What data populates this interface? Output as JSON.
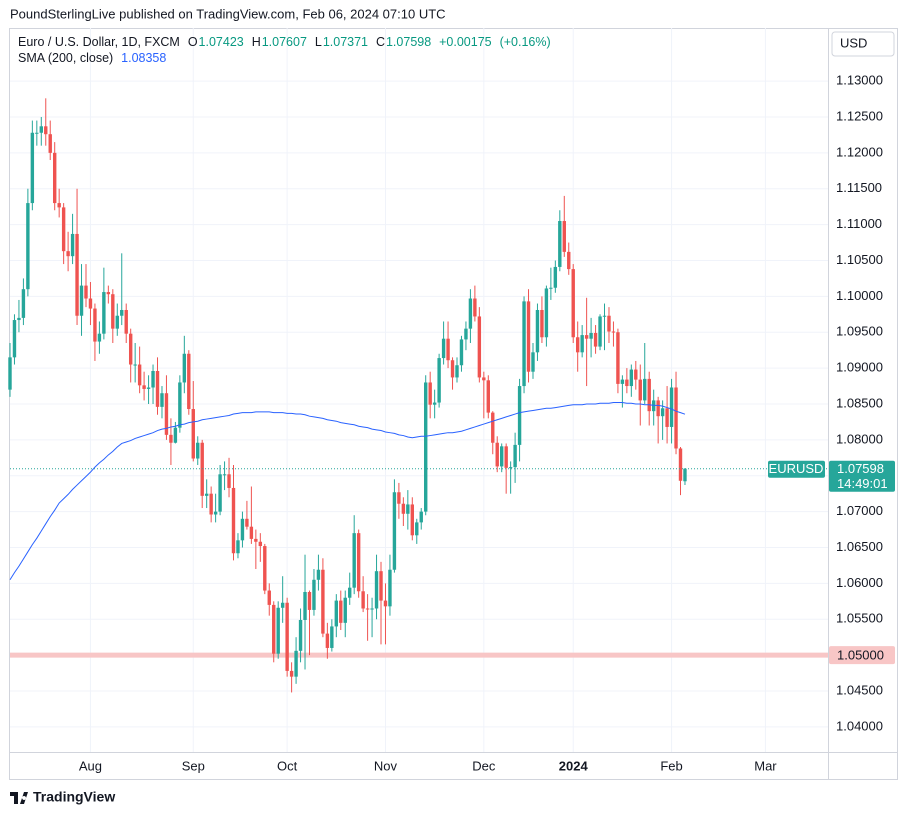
{
  "header": "PoundSterlingLive published on TradingView.com, Feb 06, 2024 07:10 UTC",
  "brand": "TradingView",
  "chart_data": {
    "type": "candlestick",
    "title": "Euro / U.S. Dollar, 1D, FXCM",
    "currency": "USD",
    "ohlc_keys": [
      "O",
      "H",
      "L",
      "C"
    ],
    "change": {
      "value": 0.00175,
      "label": "+0.00175"
    },
    "change_percent": {
      "value": 0.16,
      "label": "(+0.16%)"
    },
    "countdown": "14:49:01",
    "ylim": [
      1.0365,
      1.1374
    ],
    "yticks": [
      {
        "value": 1.04,
        "label": "1.04000"
      },
      {
        "value": 1.045,
        "label": "1.04500"
      },
      {
        "value": 1.05,
        "label": "1.05000"
      },
      {
        "value": 1.055,
        "label": "1.05500"
      },
      {
        "value": 1.06,
        "label": "1.06000"
      },
      {
        "value": 1.065,
        "label": "1.06500"
      },
      {
        "value": 1.07,
        "label": "1.07000"
      },
      {
        "value": 1.075,
        "label": "1.07500"
      },
      {
        "value": 1.08,
        "label": "1.08000"
      },
      {
        "value": 1.085,
        "label": "1.08500"
      },
      {
        "value": 1.09,
        "label": "1.09000"
      },
      {
        "value": 1.095,
        "label": "1.09500"
      },
      {
        "value": 1.1,
        "label": "1.10000"
      },
      {
        "value": 1.105,
        "label": "1.10500"
      },
      {
        "value": 1.11,
        "label": "1.11000"
      },
      {
        "value": 1.115,
        "label": "1.11500"
      },
      {
        "value": 1.12,
        "label": "1.12000"
      },
      {
        "value": 1.125,
        "label": "1.12500"
      },
      {
        "value": 1.13,
        "label": "1.13000"
      }
    ],
    "grid": true,
    "horizontal_line": {
      "value": 1.05,
      "label": "1.05000",
      "color": "#f8c6c6"
    },
    "categories": [
      null,
      null,
      null,
      null,
      null,
      null,
      null,
      null,
      null,
      null,
      null,
      null,
      null,
      null,
      null,
      null,
      null,
      null,
      "Aug",
      null,
      null,
      null,
      null,
      null,
      null,
      null,
      null,
      null,
      null,
      null,
      null,
      null,
      null,
      null,
      null,
      null,
      null,
      null,
      null,
      null,
      null,
      "Sep",
      null,
      null,
      null,
      null,
      null,
      null,
      null,
      null,
      null,
      null,
      null,
      null,
      null,
      null,
      null,
      null,
      null,
      null,
      null,
      null,
      "Oct",
      null,
      null,
      null,
      null,
      null,
      null,
      null,
      null,
      null,
      null,
      null,
      null,
      null,
      null,
      null,
      null,
      null,
      null,
      null,
      null,
      null,
      "Nov",
      null,
      null,
      null,
      null,
      null,
      null,
      null,
      null,
      null,
      null,
      null,
      null,
      null,
      null,
      null,
      null,
      null,
      null,
      null,
      null,
      null,
      "Dec",
      null,
      null,
      null,
      null,
      null,
      null,
      null,
      null,
      null,
      null,
      null,
      null,
      null,
      null,
      null,
      null,
      null,
      null,
      null,
      "2024",
      null,
      null,
      null,
      null,
      null,
      null,
      null,
      null,
      null,
      null,
      null,
      null,
      null,
      null,
      null,
      null,
      null,
      null,
      null,
      null,
      null,
      "Feb",
      null,
      null,
      null,
      null,
      null,
      null,
      null,
      null,
      null,
      null,
      null,
      null,
      null,
      null,
      null,
      null,
      null,
      null,
      null,
      null,
      "Mar"
    ],
    "series": [
      {
        "name": "EURUSD",
        "up_color": "#26a69a",
        "down_color": "#ef5350",
        "open": [
          1.087,
          1.0915,
          1.0967,
          1.097,
          1.101,
          1.113,
          1.1228,
          1.1228,
          1.1237,
          1.1226,
          1.12,
          1.113,
          1.1124,
          1.1063,
          1.1056,
          1.1087,
          1.0973,
          1.1015,
          1.0997,
          1.0983,
          1.0937,
          1.0948,
          1.1006,
          1.1003,
          1.0955,
          1.0973,
          1.0981,
          1.0948,
          1.0905,
          1.0905,
          1.0876,
          1.0871,
          1.0873,
          1.0896,
          1.0846,
          1.0865,
          1.0807,
          1.0796,
          1.0817,
          1.088,
          1.092,
          1.0843,
          1.0774,
          1.0796,
          1.0722,
          1.0725,
          1.0696,
          1.07,
          1.0752,
          1.0752,
          1.0733,
          1.0642,
          1.066,
          1.069,
          1.0679,
          1.0662,
          1.0658,
          1.0652,
          1.059,
          1.057,
          1.0502,
          1.0566,
          1.0573,
          1.0478,
          1.047,
          1.0506,
          1.0549,
          1.0588,
          1.0563,
          1.0605,
          1.0619,
          1.053,
          1.051,
          1.054,
          1.0576,
          1.0545,
          1.058,
          1.0594,
          1.067,
          1.0589,
          1.0565,
          1.0564,
          1.0565,
          1.0617,
          1.0576,
          1.0568,
          1.0619,
          1.0727,
          1.0711,
          1.0697,
          1.071,
          1.0667,
          1.0685,
          1.07,
          1.088,
          1.0849,
          1.0852,
          1.0914,
          1.0941,
          1.0911,
          1.0887,
          1.0904,
          1.094,
          1.0955,
          1.0997,
          1.0972,
          1.0887,
          1.0883,
          1.0838,
          1.0796,
          1.0763,
          1.0791,
          1.0761,
          1.0762,
          1.0793,
          1.0875,
          1.0993,
          1.0895,
          1.0922,
          1.0981,
          1.0943,
          1.1011,
          1.1012,
          1.1041,
          1.1105,
          1.1062,
          1.1038,
          1.0943,
          1.0922,
          1.0946,
          1.0941,
          1.0949,
          1.093,
          1.0972,
          1.0973,
          1.0951,
          1.095,
          1.0878,
          1.0884,
          1.0875,
          1.0898,
          1.0884,
          1.0855,
          1.0885,
          1.084,
          1.0855,
          1.0833,
          1.0844,
          1.0818,
          1.0873,
          1.0788,
          1.07423,
          null,
          null,
          null,
          null,
          null,
          null,
          null,
          null,
          null,
          null,
          null,
          null,
          null,
          null,
          null,
          null,
          null,
          null
        ],
        "high": [
          1.0935,
          1.0975,
          1.0995,
          1.1025,
          1.115,
          1.1245,
          1.1245,
          1.125,
          1.1276,
          1.1245,
          1.1215,
          1.115,
          1.113,
          1.109,
          1.1115,
          1.115,
          1.1045,
          1.1045,
          1.102,
          1.099,
          1.0965,
          1.104,
          1.1015,
          1.101,
          1.099,
          1.106,
          1.099,
          1.0955,
          1.0935,
          1.093,
          1.0895,
          1.089,
          1.0905,
          1.0915,
          1.0875,
          1.089,
          1.083,
          1.0825,
          1.089,
          1.0945,
          1.0925,
          1.0882,
          1.0805,
          1.08,
          1.0745,
          1.0735,
          1.0725,
          1.0765,
          1.077,
          1.0775,
          1.0765,
          1.067,
          1.07,
          1.0715,
          1.0735,
          1.0675,
          1.067,
          1.0655,
          1.06,
          1.0575,
          1.0575,
          1.061,
          1.058,
          1.049,
          1.0525,
          1.0565,
          1.064,
          1.059,
          1.062,
          1.064,
          1.0635,
          1.0545,
          1.055,
          1.0585,
          1.059,
          1.059,
          1.0615,
          1.0695,
          1.0675,
          1.061,
          1.0585,
          1.058,
          1.064,
          1.063,
          1.06,
          1.064,
          1.0745,
          1.074,
          1.072,
          1.073,
          1.072,
          1.069,
          1.0705,
          1.089,
          1.0895,
          1.087,
          1.092,
          1.0965,
          1.0965,
          1.0915,
          1.0915,
          1.0945,
          1.0965,
          1.101,
          1.1015,
          1.0985,
          1.0895,
          1.089,
          1.084,
          1.0805,
          1.0795,
          1.0795,
          1.077,
          1.081,
          1.0885,
          1.1,
          1.101,
          1.0935,
          1.099,
          1.1,
          1.1015,
          1.104,
          1.105,
          1.112,
          1.114,
          1.1075,
          1.1045,
          1.0965,
          1.096,
          1.0998,
          1.097,
          1.096,
          1.0975,
          1.099,
          1.0985,
          1.0965,
          1.0955,
          1.089,
          1.09,
          1.0905,
          1.091,
          1.0905,
          1.0935,
          1.0895,
          1.087,
          1.086,
          1.0855,
          1.0875,
          1.0885,
          1.0895,
          1.079,
          1.07607,
          null,
          null,
          null,
          null,
          null,
          null,
          null,
          null,
          null,
          null,
          null,
          null,
          null,
          null,
          null,
          null,
          null,
          null
        ],
        "low": [
          1.086,
          1.0905,
          1.095,
          1.096,
          1.1,
          1.112,
          1.121,
          1.121,
          1.121,
          1.119,
          1.112,
          1.111,
          1.1045,
          1.1035,
          1.1045,
          1.096,
          1.0945,
          1.0985,
          1.096,
          1.091,
          1.092,
          1.094,
          1.099,
          1.0935,
          1.0945,
          1.096,
          1.0935,
          1.088,
          1.088,
          1.0865,
          1.0855,
          1.085,
          1.085,
          1.0835,
          1.083,
          1.08,
          1.0765,
          1.0795,
          1.081,
          1.0865,
          1.0835,
          1.077,
          1.0765,
          1.0705,
          1.0705,
          1.0685,
          1.0685,
          1.0695,
          1.073,
          1.072,
          1.0632,
          1.0635,
          1.065,
          1.0675,
          1.0655,
          1.062,
          1.063,
          1.0585,
          1.0555,
          1.049,
          1.0495,
          1.0545,
          1.047,
          1.0448,
          1.046,
          1.049,
          1.048,
          1.05,
          1.0555,
          1.059,
          1.0525,
          1.0495,
          1.0505,
          1.0525,
          1.0535,
          1.0525,
          1.057,
          1.0585,
          1.058,
          1.056,
          1.052,
          1.0525,
          1.055,
          1.0515,
          1.0515,
          1.0555,
          1.0615,
          1.069,
          1.068,
          1.0675,
          1.066,
          1.0655,
          1.0675,
          1.0695,
          1.083,
          1.083,
          1.0845,
          1.0905,
          1.09,
          1.087,
          1.088,
          1.0895,
          1.0925,
          1.0935,
          1.0965,
          1.088,
          1.083,
          1.083,
          1.078,
          1.0755,
          1.0755,
          1.0725,
          1.0725,
          1.074,
          1.077,
          1.0865,
          1.088,
          1.0885,
          1.091,
          1.0935,
          1.093,
          1.0995,
          1.1005,
          1.1035,
          1.1055,
          1.103,
          1.0935,
          1.0895,
          1.0915,
          1.0875,
          1.0915,
          1.092,
          1.0925,
          1.0925,
          1.0935,
          1.093,
          1.0865,
          1.0845,
          1.0865,
          1.086,
          1.087,
          1.082,
          1.085,
          1.082,
          1.082,
          1.0795,
          1.08,
          1.0795,
          1.0795,
          1.078,
          1.0723,
          1.07371,
          null,
          null,
          null,
          null,
          null,
          null,
          null,
          null,
          null,
          null,
          null,
          null,
          null,
          null,
          null,
          null,
          null,
          null
        ],
        "close": [
          1.0915,
          1.0967,
          1.097,
          1.101,
          1.113,
          1.1228,
          1.1228,
          1.1237,
          1.1226,
          1.12,
          1.113,
          1.1124,
          1.1063,
          1.1056,
          1.1087,
          1.0973,
          1.1015,
          1.0997,
          1.0983,
          1.0937,
          1.0948,
          1.1006,
          1.1003,
          1.0955,
          1.0973,
          1.0981,
          1.0948,
          1.0905,
          1.0905,
          1.0876,
          1.0871,
          1.0873,
          1.0896,
          1.0846,
          1.0865,
          1.0807,
          1.0796,
          1.0817,
          1.088,
          1.092,
          1.0843,
          1.0774,
          1.0796,
          1.0722,
          1.0725,
          1.0696,
          1.07,
          1.0752,
          1.0752,
          1.0733,
          1.0642,
          1.066,
          1.069,
          1.0679,
          1.0662,
          1.0658,
          1.0652,
          1.059,
          1.057,
          1.0502,
          1.0566,
          1.0573,
          1.0478,
          1.047,
          1.0506,
          1.0549,
          1.0588,
          1.0563,
          1.0605,
          1.0619,
          1.053,
          1.051,
          1.054,
          1.0576,
          1.0545,
          1.058,
          1.0594,
          1.067,
          1.0589,
          1.0565,
          1.0564,
          1.0565,
          1.0617,
          1.0576,
          1.0568,
          1.0619,
          1.0727,
          1.0711,
          1.0697,
          1.071,
          1.0667,
          1.0685,
          1.07,
          1.088,
          1.0849,
          1.0852,
          1.0914,
          1.0941,
          1.0911,
          1.0887,
          1.0904,
          1.094,
          1.0955,
          1.0997,
          1.0972,
          1.0887,
          1.0883,
          1.0838,
          1.0796,
          1.0763,
          1.0791,
          1.0761,
          1.0762,
          1.0793,
          1.0875,
          1.0993,
          1.0895,
          1.0922,
          1.0981,
          1.0943,
          1.1011,
          1.1012,
          1.1041,
          1.1105,
          1.1062,
          1.1038,
          1.0943,
          1.0922,
          1.0946,
          1.0941,
          1.0949,
          1.093,
          1.0972,
          1.0973,
          1.0951,
          1.095,
          1.0878,
          1.0884,
          1.0875,
          1.0898,
          1.0884,
          1.0855,
          1.0885,
          1.084,
          1.0855,
          1.0833,
          1.0844,
          1.0818,
          1.0873,
          1.0788,
          1.0743,
          1.07598,
          null,
          null,
          null,
          null,
          null,
          null,
          null,
          null,
          null,
          null,
          null,
          null,
          null,
          null,
          null,
          null,
          null,
          null
        ]
      },
      {
        "name": "SMA (200, close)",
        "color": "#2962ff",
        "values": [
          1.0605,
          1.0615,
          1.0624,
          1.0634,
          1.0644,
          1.0654,
          1.0663,
          1.0673,
          1.0683,
          1.0693,
          1.0702,
          1.0712,
          1.0718,
          1.0724,
          1.0731,
          1.0737,
          1.0743,
          1.0749,
          1.0755,
          1.0762,
          1.0768,
          1.0773,
          1.0779,
          1.0784,
          1.079,
          1.0795,
          1.0797,
          1.0799,
          1.0802,
          1.0804,
          1.0806,
          1.0808,
          1.081,
          1.0813,
          1.0815,
          1.0816,
          1.0818,
          1.0819,
          1.0821,
          1.0822,
          1.0824,
          1.0825,
          1.0826,
          1.0828,
          1.0829,
          1.083,
          1.0831,
          1.0832,
          1.0833,
          1.0834,
          1.0836,
          1.0837,
          1.0838,
          1.0838,
          1.0838,
          1.0839,
          1.0839,
          1.0839,
          1.0839,
          1.0838,
          1.0838,
          1.0838,
          1.0837,
          1.0837,
          1.0836,
          1.0836,
          1.0835,
          1.0833,
          1.0832,
          1.0831,
          1.083,
          1.0828,
          1.0827,
          1.0826,
          1.0824,
          1.0823,
          1.0822,
          1.0821,
          1.0819,
          1.0818,
          1.0817,
          1.0815,
          1.0814,
          1.0813,
          1.0811,
          1.081,
          1.0809,
          1.0807,
          1.0806,
          1.0804,
          1.0803,
          1.0804,
          1.0805,
          1.0805,
          1.0806,
          1.0807,
          1.0808,
          1.0809,
          1.081,
          1.081,
          1.0811,
          1.0812,
          1.0814,
          1.0816,
          1.0818,
          1.082,
          1.0822,
          1.0824,
          1.0826,
          1.0828,
          1.083,
          1.0832,
          1.0834,
          1.0836,
          1.0838,
          1.0839,
          1.084,
          1.0841,
          1.0842,
          1.0843,
          1.0844,
          1.0844,
          1.0845,
          1.0846,
          1.0847,
          1.0848,
          1.0849,
          1.0849,
          1.0849,
          1.085,
          1.085,
          1.085,
          1.0851,
          1.0851,
          1.0851,
          1.0852,
          1.0852,
          1.0852,
          1.0851,
          1.0851,
          1.085,
          1.085,
          1.0849,
          1.0849,
          1.0848,
          1.0848,
          1.0847,
          1.0845,
          1.0843,
          1.084,
          1.0838,
          1.08358,
          null,
          null,
          null,
          null,
          null,
          null,
          null,
          null,
          null,
          null,
          null,
          null,
          null,
          null,
          null,
          null,
          null,
          null
        ]
      }
    ]
  }
}
